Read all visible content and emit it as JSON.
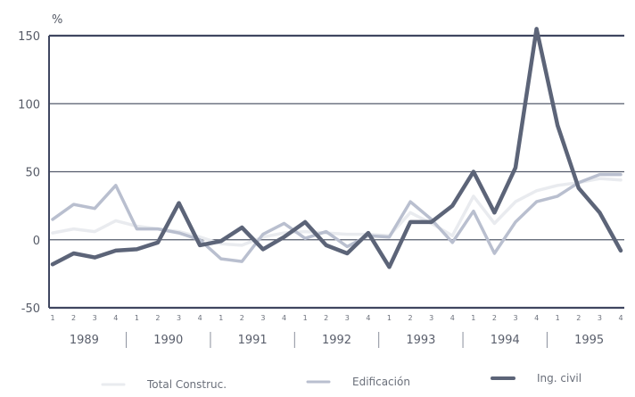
{
  "chart_data": {
    "type": "line",
    "ylabel": "%",
    "ylim": [
      -50,
      150
    ],
    "yticks": [
      "150",
      "100",
      "50",
      "0",
      "-50"
    ],
    "quarter_labels": [
      "1",
      "2",
      "3",
      "4",
      "1",
      "2",
      "3",
      "4",
      "1",
      "2",
      "3",
      "4",
      "1",
      "2",
      "3",
      "4",
      "1",
      "2",
      "3",
      "4",
      "1",
      "2",
      "3",
      "4",
      "1",
      "2",
      "3",
      "4"
    ],
    "years": [
      "1989",
      "1990",
      "1991",
      "1992",
      "1993",
      "1994",
      "1995"
    ],
    "series": [
      {
        "name": "Total Construc.",
        "color": "#e9ebef",
        "values": [
          5,
          8,
          6,
          14,
          10,
          8,
          6,
          2,
          -3,
          -4,
          2,
          5,
          6,
          5,
          4,
          4,
          3,
          20,
          12,
          3,
          32,
          12,
          28,
          36,
          40,
          42,
          45,
          44
        ]
      },
      {
        "name": "Edificación",
        "color": "#b9bfcf",
        "values": [
          15,
          26,
          23,
          40,
          8,
          8,
          5,
          0,
          -14,
          -16,
          4,
          12,
          1,
          6,
          -5,
          3,
          2,
          28,
          15,
          -2,
          21,
          -10,
          13,
          28,
          32,
          42,
          48,
          48
        ]
      },
      {
        "name": "Ing. civil",
        "color": "#5c6478",
        "values": [
          -18,
          -10,
          -13,
          -8,
          -7,
          -2,
          27,
          -4,
          -1,
          9,
          -7,
          2,
          13,
          -4,
          -10,
          5,
          -20,
          13,
          13,
          25,
          50,
          20,
          53,
          155,
          84,
          38,
          20,
          -8
        ]
      }
    ]
  }
}
